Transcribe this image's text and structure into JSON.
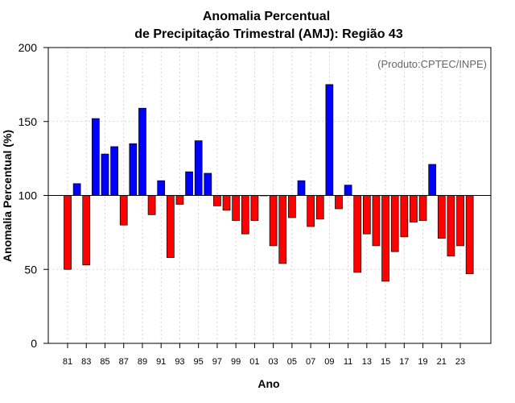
{
  "chart_data": {
    "type": "bar",
    "title": [
      "Anomalia Percentual",
      "de Precipitação Trimestral (AMJ): Região 43"
    ],
    "credit": "(Produto:CPTEC/INPE)",
    "xlabel": "Ano",
    "ylabel": "Anomalia Percentual (%)",
    "ylim": [
      0,
      200
    ],
    "yticks": [
      0,
      50,
      100,
      150,
      200
    ],
    "baseline": 100,
    "grid": true,
    "colors": {
      "above": "#0000ff",
      "below": "#ff0000",
      "edge": "#000000",
      "grid": "#cccccc"
    },
    "categories": [
      "81",
      "82",
      "83",
      "84",
      "85",
      "86",
      "87",
      "88",
      "89",
      "90",
      "91",
      "92",
      "93",
      "94",
      "95",
      "96",
      "97",
      "98",
      "99",
      "00",
      "01",
      "02",
      "03",
      "04",
      "05",
      "06",
      "07",
      "08",
      "09",
      "10",
      "11",
      "12",
      "13",
      "14",
      "15",
      "16",
      "17",
      "18",
      "19",
      "20",
      "21",
      "22",
      "23",
      "24"
    ],
    "xtick_labels": [
      "81",
      "83",
      "85",
      "87",
      "89",
      "91",
      "93",
      "95",
      "97",
      "99",
      "01",
      "03",
      "05",
      "07",
      "09",
      "11",
      "13",
      "15",
      "17",
      "19",
      "21",
      "23"
    ],
    "values": [
      50,
      108,
      53,
      152,
      128,
      133,
      80,
      135,
      159,
      87,
      110,
      58,
      94,
      116,
      137,
      115,
      93,
      90,
      83,
      74,
      83,
      100,
      66,
      54,
      85,
      110,
      79,
      84,
      175,
      91,
      107,
      48,
      74,
      66,
      42,
      62,
      72,
      82,
      83,
      121,
      71,
      59,
      66,
      47
    ]
  }
}
